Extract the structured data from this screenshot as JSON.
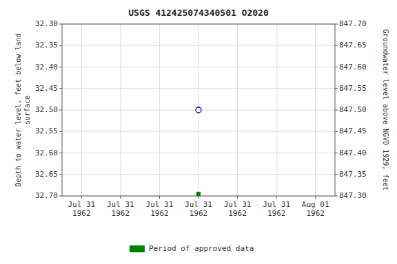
{
  "chart_data": {
    "type": "scatter",
    "title": "USGS 412425074340501 O2020",
    "y_label": "Depth to water level, feet below land\nsurface",
    "y2_label": "Groundwater level above NGVD 1929, feet",
    "categories": [
      "Jul 31\n1962",
      "Jul 31\n1962",
      "Jul 31\n1962",
      "Jul 31\n1962",
      "Jul 31\n1962",
      "Jul 31\n1962",
      "Aug 01\n1962"
    ],
    "series": [
      {
        "color": "#0000cc",
        "marker": "circle",
        "values": [
          null,
          null,
          null,
          32.5,
          null,
          null,
          null
        ]
      },
      {
        "name": "Period of approved data",
        "color": "#008000",
        "marker": "square",
        "values": [
          null,
          null,
          null,
          32.695,
          null,
          null,
          null
        ]
      }
    ],
    "ylim": [
      32.7,
      32.3
    ],
    "yticks": [
      {
        "value": 32.3,
        "label": "32.30"
      },
      32.35,
      {
        "value": 32.4,
        "label": "32.40"
      },
      32.45,
      {
        "value": 32.5,
        "label": "32.50"
      },
      32.55,
      {
        "value": 32.6,
        "label": "32.60"
      },
      32.65,
      {
        "value": 32.7,
        "label": "32.70"
      }
    ],
    "y2lim": [
      847.3,
      847.7
    ],
    "y2ticks": [
      {
        "value": 847.7,
        "label": "847.70"
      },
      847.65,
      {
        "value": 847.6,
        "label": "847.60"
      },
      847.55,
      {
        "value": 847.5,
        "label": "847.50"
      },
      847.45,
      {
        "value": 847.4,
        "label": "847.40"
      },
      847.35,
      {
        "value": 847.3,
        "label": "847.30"
      }
    ],
    "grid": true,
    "legend": "bottom"
  }
}
